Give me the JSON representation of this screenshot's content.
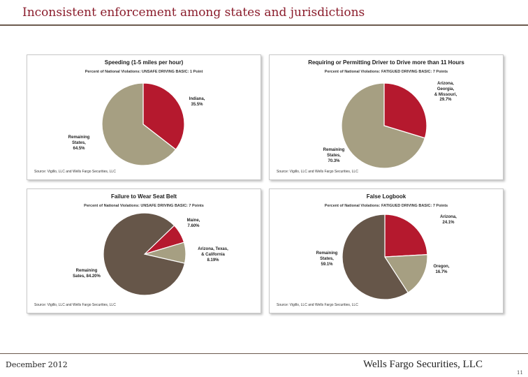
{
  "header": {
    "title": "Inconsistent enforcement among states and jurisdictions"
  },
  "colors": {
    "red": "#b5192e",
    "tan": "#a69f82",
    "brown": "#665649",
    "accent": "#8a1c2b"
  },
  "chart_data": [
    {
      "type": "pie",
      "title": "Speeding (1-5 miles per hour)",
      "subtitle": "Percent of National Violations: UNSAFE DRIVING BASIC: 1 Point",
      "source": "Source: Vigillo, LLC and Wells Fargo Securities, LLC",
      "slices": [
        {
          "lines": [
            "Indiana,",
            "35.5%"
          ],
          "value": 35.5,
          "color": "#b5192e"
        },
        {
          "lines": [
            "Remaining",
            "States,",
            "64.5%"
          ],
          "value": 64.5,
          "color": "#a69f82"
        }
      ]
    },
    {
      "type": "pie",
      "title": "Requiring or Permitting Driver to Drive more than 11 Hours",
      "subtitle": "Percent of National Violations: FATIGUED DRIVING BASIC: 7 Points",
      "source": "Source: Vigillo, LLC and Wells Fargo Securities, LLC",
      "slices": [
        {
          "lines": [
            "Arizona,",
            "Georgia,",
            "& Missouri,",
            "29.7%"
          ],
          "value": 29.7,
          "color": "#b5192e"
        },
        {
          "lines": [
            "Remaining",
            "States,",
            "70.3%"
          ],
          "value": 70.3,
          "color": "#a69f82"
        }
      ]
    },
    {
      "type": "pie",
      "title": "Failure to Wear Seat Belt",
      "subtitle": "Percent of National Violations: UNSAFE DRIVING BASIC: 7 Points",
      "source": "Source: Vigillo, LLC and Wells Fargo Securities, LLC",
      "slices": [
        {
          "lines": [
            "Maine,",
            "7.60%"
          ],
          "value": 7.6,
          "color": "#b5192e"
        },
        {
          "lines": [
            "Arizona, Texas,",
            "& California",
            "8.19%"
          ],
          "value": 8.19,
          "color": "#a69f82"
        },
        {
          "lines": [
            "Remaining",
            "Sates, 84.20%"
          ],
          "value": 84.2,
          "color": "#665649"
        }
      ]
    },
    {
      "type": "pie",
      "title": "False Logbook",
      "subtitle": "Percent of National Violations: FATIGUED DRIVING BASIC: 7 Points",
      "source": "Source: Vigillo, LLC and Wells Fargo Securities, LLC",
      "slices": [
        {
          "lines": [
            "Arizona,",
            "24.1%"
          ],
          "value": 24.1,
          "color": "#b5192e"
        },
        {
          "lines": [
            "Oregon,",
            "16.7%"
          ],
          "value": 16.7,
          "color": "#a69f82"
        },
        {
          "lines": [
            "Remaining",
            "States,",
            "59.1%"
          ],
          "value": 59.1,
          "color": "#665649"
        }
      ]
    }
  ],
  "footer": {
    "date": "December 2012",
    "firm": "Wells Fargo Securities, LLC",
    "page": "11"
  }
}
